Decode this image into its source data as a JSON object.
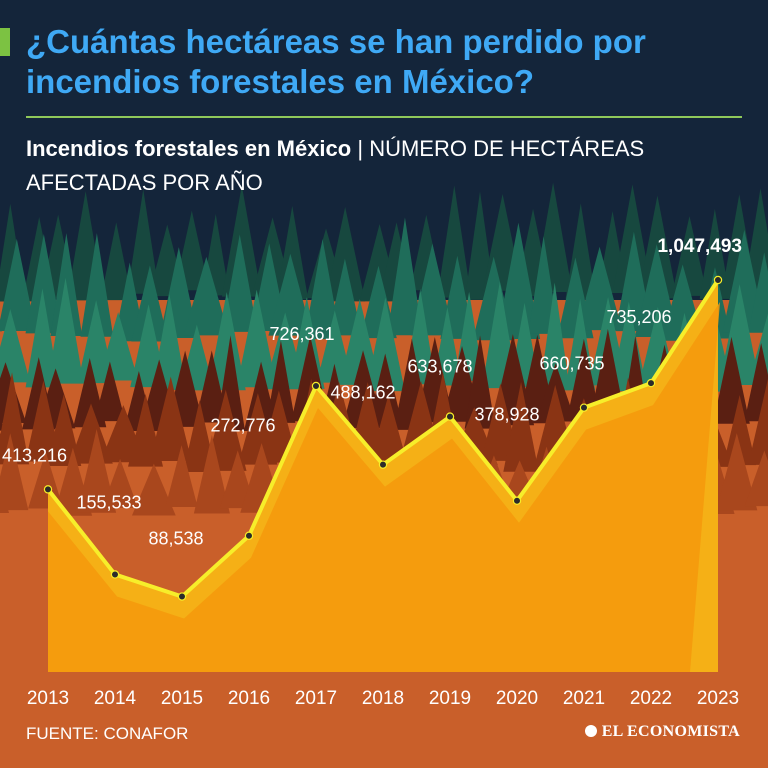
{
  "header": {
    "title": "¿Cuántas hectáreas se han perdido por incendios forestales en México?",
    "subtitle_bold": "Incendios forestales en México",
    "subtitle_separator": " | ",
    "subtitle_rest": "NÚMERO DE HECTÁREAS AFECTADAS POR AÑO"
  },
  "footer": {
    "source": "FUENTE: CONAFOR",
    "brand": "EL ECONOMISTA"
  },
  "colors": {
    "background_sky": "#14253a",
    "title": "#3fa9f5",
    "accent": "#7cc242",
    "forest_green": "#1d6a58",
    "forest_red": "#8a2f12",
    "ground": "#c95f2a",
    "area_fill": "#f59a0c",
    "line": "#f7ee2a"
  },
  "chart_data": {
    "type": "area",
    "title": "Incendios forestales en México",
    "subtitle": "NÚMERO DE HECTÁREAS AFECTADAS POR AÑO",
    "xlabel": "",
    "ylabel": "",
    "categories": [
      "2013",
      "2014",
      "2015",
      "2016",
      "2017",
      "2018",
      "2019",
      "2020",
      "2021",
      "2022",
      "2023"
    ],
    "values": [
      413216,
      155533,
      88538,
      272776,
      726361,
      488162,
      633678,
      378928,
      660735,
      735206,
      1047493
    ],
    "labels": [
      "413,216",
      "155,533",
      "88,538",
      "272,776",
      "726,361",
      "488,162",
      "633,678",
      "378,928",
      "660,735",
      "735,206",
      "1,047,493"
    ],
    "highlight_index": 10,
    "ylim": [
      -140000,
      1047493
    ],
    "grid": false,
    "legend": "none"
  }
}
